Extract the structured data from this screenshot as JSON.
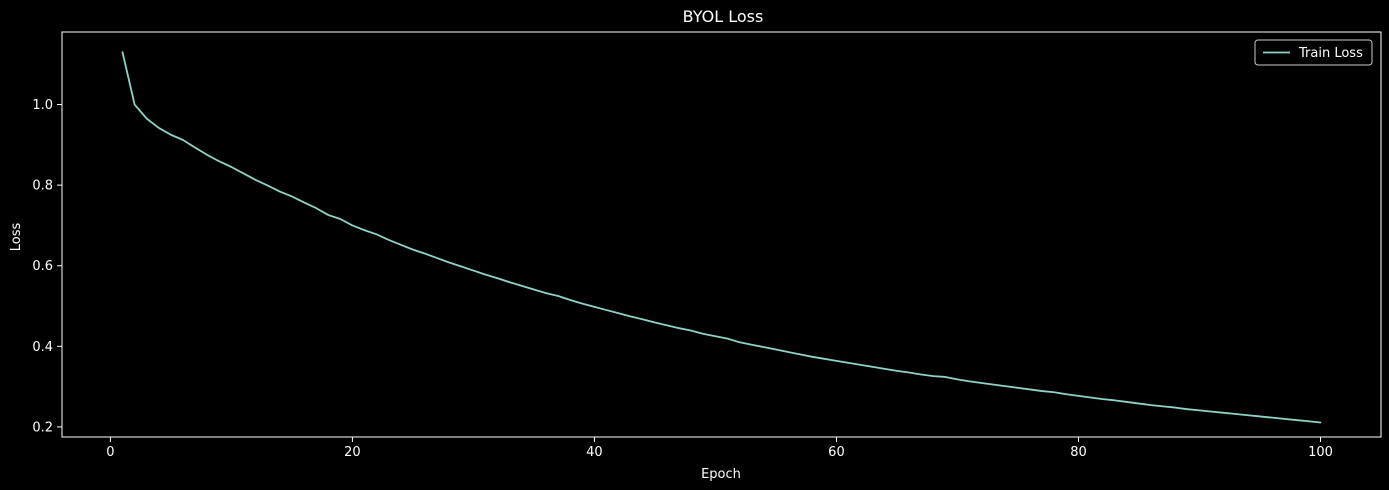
{
  "chart_data": {
    "type": "line",
    "title": "BYOL Loss",
    "xlabel": "Epoch",
    "ylabel": "Loss",
    "xlim": [
      -4,
      105
    ],
    "ylim": [
      0.175,
      1.18
    ],
    "xticks": [
      0,
      20,
      40,
      60,
      80,
      100
    ],
    "yticks": [
      0.2,
      0.4,
      0.6,
      0.8,
      1.0
    ],
    "xtick_labels": [
      "0",
      "20",
      "40",
      "60",
      "80",
      "100"
    ],
    "ytick_labels": [
      "0.2",
      "0.4",
      "0.6",
      "0.8",
      "1.0"
    ],
    "grid": false,
    "legend_position": "top-right",
    "colors": {
      "background": "#000000",
      "foreground": "#ffffff",
      "series": "#8dd3c7"
    },
    "series": [
      {
        "name": "Train Loss",
        "x": [
          1,
          2,
          3,
          4,
          5,
          6,
          7,
          8,
          9,
          10,
          11,
          12,
          13,
          14,
          15,
          16,
          17,
          18,
          19,
          20,
          21,
          22,
          23,
          24,
          25,
          26,
          27,
          28,
          29,
          30,
          31,
          32,
          33,
          34,
          35,
          36,
          37,
          38,
          39,
          40,
          41,
          42,
          43,
          44,
          45,
          46,
          47,
          48,
          49,
          50,
          51,
          52,
          53,
          54,
          55,
          56,
          57,
          58,
          59,
          60,
          61,
          62,
          63,
          64,
          65,
          66,
          67,
          68,
          69,
          70,
          71,
          72,
          73,
          74,
          75,
          76,
          77,
          78,
          79,
          80,
          81,
          82,
          83,
          84,
          85,
          86,
          87,
          88,
          89,
          90,
          91,
          92,
          93,
          94,
          95,
          96,
          97,
          98,
          99,
          100
        ],
        "values": [
          1.13,
          1.0,
          0.965,
          0.942,
          0.925,
          0.912,
          0.893,
          0.875,
          0.859,
          0.845,
          0.829,
          0.813,
          0.799,
          0.784,
          0.772,
          0.757,
          0.743,
          0.726,
          0.716,
          0.7,
          0.688,
          0.678,
          0.664,
          0.652,
          0.64,
          0.63,
          0.619,
          0.608,
          0.598,
          0.588,
          0.578,
          0.569,
          0.559,
          0.55,
          0.541,
          0.532,
          0.525,
          0.515,
          0.506,
          0.498,
          0.49,
          0.482,
          0.474,
          0.467,
          0.459,
          0.452,
          0.445,
          0.439,
          0.431,
          0.425,
          0.419,
          0.41,
          0.404,
          0.398,
          0.392,
          0.386,
          0.38,
          0.374,
          0.369,
          0.364,
          0.359,
          0.354,
          0.349,
          0.344,
          0.339,
          0.335,
          0.33,
          0.326,
          0.324,
          0.318,
          0.313,
          0.309,
          0.305,
          0.301,
          0.297,
          0.293,
          0.289,
          0.286,
          0.281,
          0.277,
          0.273,
          0.269,
          0.266,
          0.262,
          0.258,
          0.254,
          0.251,
          0.248,
          0.244,
          0.241,
          0.238,
          0.235,
          0.232,
          0.229,
          0.226,
          0.223,
          0.22,
          0.217,
          0.214,
          0.211
        ]
      }
    ]
  }
}
